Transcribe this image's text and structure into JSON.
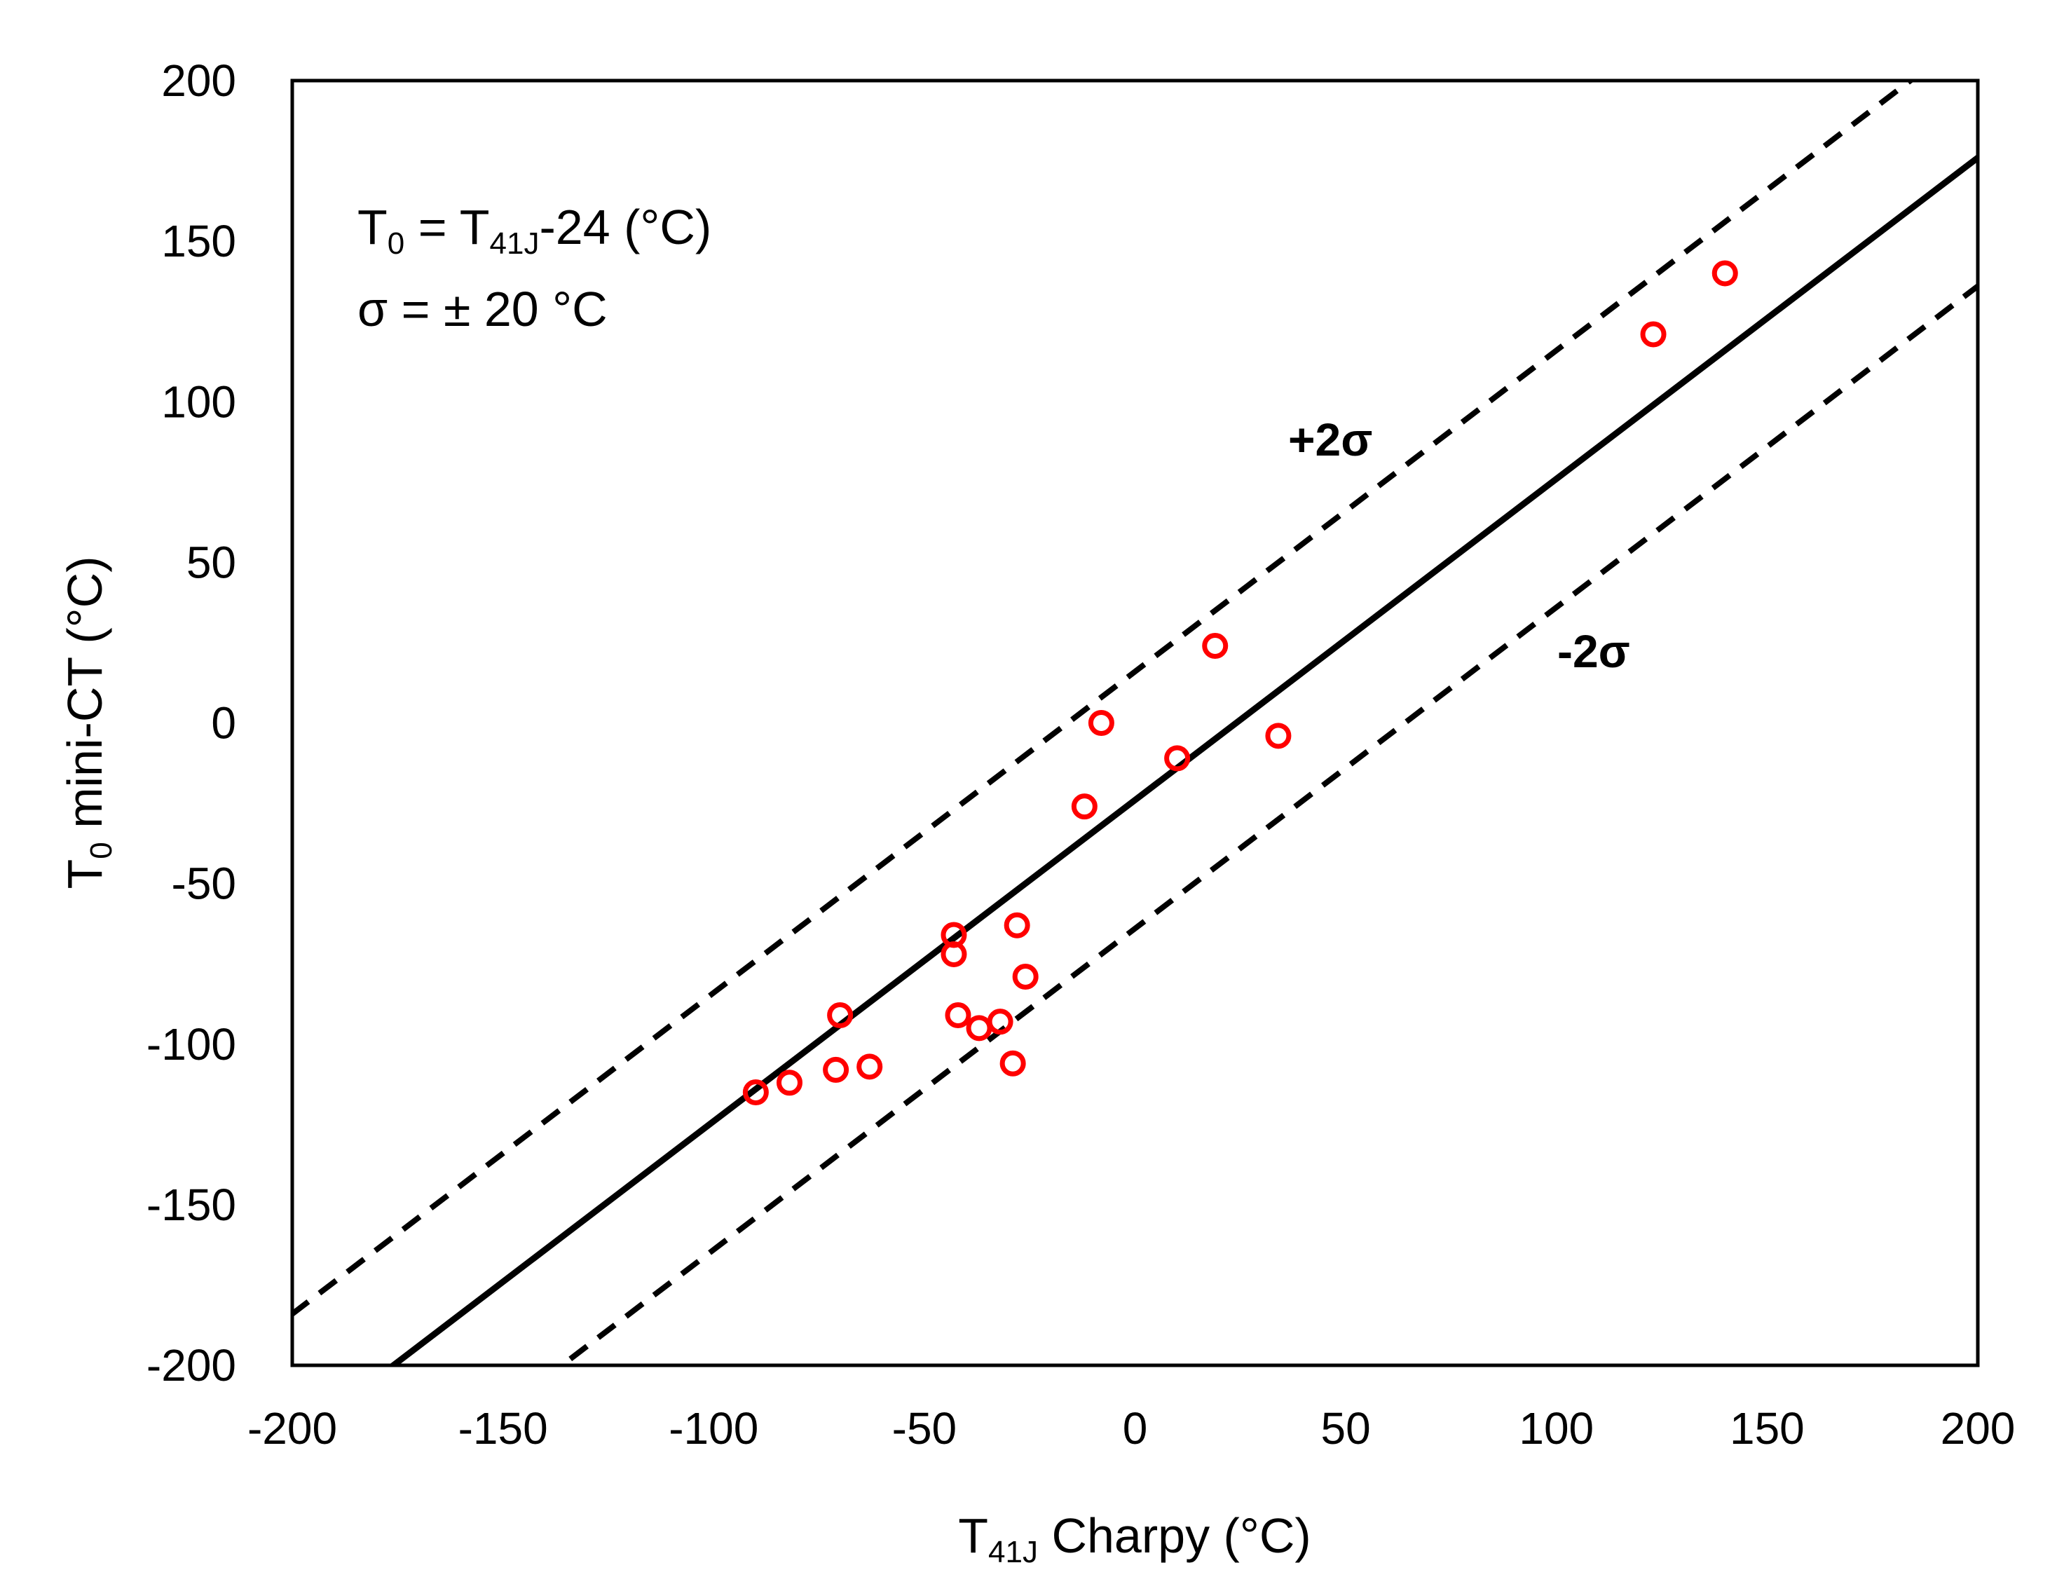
{
  "chart_data": {
    "type": "scatter",
    "title": "",
    "xlabel": "T41J Charpy (°C)",
    "ylabel": "T0 mini-CT (°C)",
    "xlabel_parts": {
      "main": "T",
      "sub": "41J",
      "rest": " Charpy (°C)"
    },
    "ylabel_parts": {
      "main": "T",
      "sub": "0",
      "rest": " mini-CT (°C)"
    },
    "xlim": [
      -200,
      200
    ],
    "ylim": [
      -200,
      200
    ],
    "xticks": [
      -200,
      -150,
      -100,
      -50,
      0,
      50,
      100,
      150,
      200
    ],
    "yticks": [
      -200,
      -150,
      -100,
      -50,
      0,
      50,
      100,
      150,
      200
    ],
    "grid": false,
    "annotations": {
      "equation": "T0 = T41J-24 (°C)",
      "equation_parts": {
        "a": "T",
        "a_sub": "0",
        "b": " = T",
        "b_sub": "41J",
        "c": "-24 (°C)"
      },
      "sigma": "σ = ± 20 °C",
      "upper_band_label": "+2σ",
      "lower_band_label": "-2σ"
    },
    "lines": [
      {
        "name": "fit",
        "slope": 1,
        "intercept": -24,
        "style": "solid",
        "color": "#000000"
      },
      {
        "name": "+2σ",
        "slope": 1,
        "intercept": 16,
        "style": "dashed",
        "color": "#000000"
      },
      {
        "name": "-2σ",
        "slope": 1,
        "intercept": -64,
        "style": "dashed",
        "color": "#000000"
      }
    ],
    "series": [
      {
        "name": "data",
        "marker": "open-circle",
        "color": "#ff0000",
        "points": [
          {
            "x": -90,
            "y": -115
          },
          {
            "x": -82,
            "y": -112
          },
          {
            "x": -71,
            "y": -108
          },
          {
            "x": -63,
            "y": -107
          },
          {
            "x": -70,
            "y": -91
          },
          {
            "x": -43,
            "y": -66
          },
          {
            "x": -43,
            "y": -72
          },
          {
            "x": -42,
            "y": -91
          },
          {
            "x": -37,
            "y": -95
          },
          {
            "x": -32,
            "y": -93
          },
          {
            "x": -28,
            "y": -63
          },
          {
            "x": -26,
            "y": -79
          },
          {
            "x": -29,
            "y": -106
          },
          {
            "x": -12,
            "y": -26
          },
          {
            "x": -8,
            "y": 0
          },
          {
            "x": 10,
            "y": -11
          },
          {
            "x": 19,
            "y": 24
          },
          {
            "x": 34,
            "y": -4
          },
          {
            "x": 123,
            "y": 121
          },
          {
            "x": 140,
            "y": 140
          }
        ]
      }
    ]
  }
}
